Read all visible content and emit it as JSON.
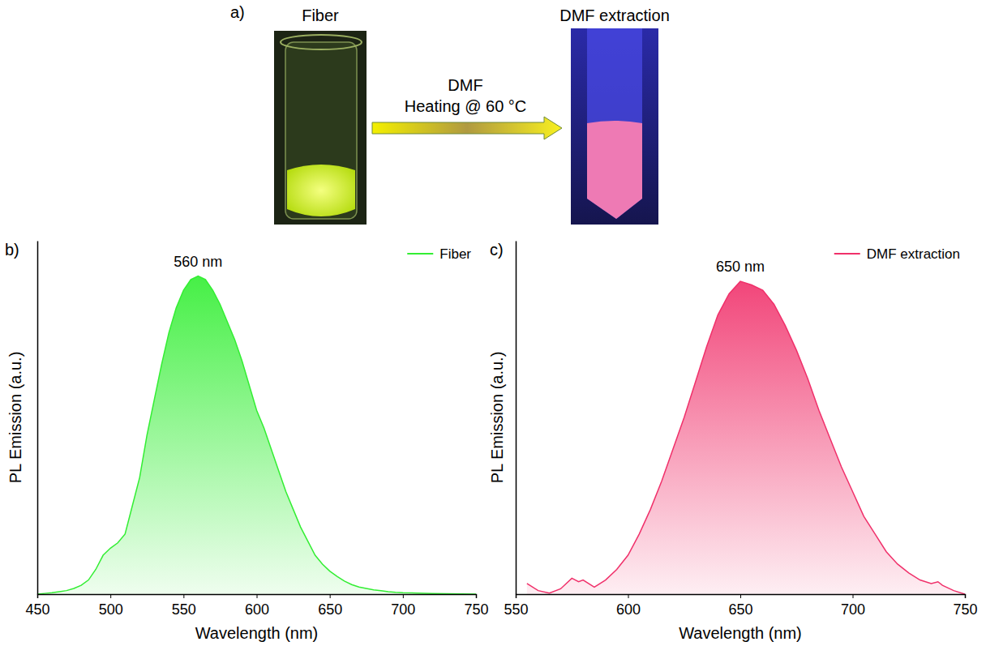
{
  "scheme": {
    "panel_label": "a)",
    "left_label": "Fiber",
    "right_label": "DMF extraction",
    "arrow_text": [
      "DMF",
      "Heating @ 60 °C"
    ]
  },
  "chart_data": [
    {
      "type": "area",
      "panel_label": "b)",
      "x_label": "Wavelength (nm)",
      "y_label": "PL Emission (a.u.)",
      "annotations": [
        {
          "text": "560 nm"
        }
      ],
      "xlim": [
        450,
        750
      ],
      "xticks": [
        450,
        500,
        550,
        600,
        650,
        700,
        750
      ],
      "ylim": [
        0,
        1
      ],
      "tick_labels": "x",
      "grid": false,
      "legend": "upper right",
      "series": [
        {
          "name": "Fiber",
          "color": "#33ee33",
          "x": [
            450,
            455,
            460,
            465,
            470,
            475,
            480,
            485,
            490,
            495,
            500,
            505,
            510,
            515,
            520,
            525,
            530,
            535,
            540,
            545,
            550,
            555,
            560,
            565,
            570,
            575,
            580,
            585,
            590,
            595,
            600,
            605,
            610,
            615,
            620,
            625,
            630,
            635,
            640,
            645,
            650,
            655,
            660,
            665,
            670,
            675,
            680,
            685,
            690,
            695,
            700,
            710,
            720,
            730,
            740,
            750
          ],
          "values": [
            0.0,
            0.002,
            0.004,
            0.007,
            0.01,
            0.016,
            0.025,
            0.04,
            0.07,
            0.11,
            0.13,
            0.145,
            0.17,
            0.25,
            0.33,
            0.45,
            0.55,
            0.65,
            0.74,
            0.81,
            0.86,
            0.89,
            0.9,
            0.89,
            0.86,
            0.82,
            0.77,
            0.72,
            0.66,
            0.59,
            0.52,
            0.47,
            0.41,
            0.35,
            0.29,
            0.24,
            0.19,
            0.15,
            0.11,
            0.085,
            0.065,
            0.05,
            0.037,
            0.027,
            0.02,
            0.016,
            0.012,
            0.01,
            0.007,
            0.005,
            0.004,
            0.003,
            0.002,
            0.001,
            0.0005,
            0.0
          ]
        }
      ]
    },
    {
      "type": "area",
      "panel_label": "c)",
      "x_label": "Wavelength (nm)",
      "y_label": "PL Emission (a.u.)",
      "annotations": [
        {
          "text": "650 nm"
        }
      ],
      "xlim": [
        550,
        750
      ],
      "xticks": [
        550,
        600,
        650,
        700,
        750
      ],
      "ylim": [
        0,
        1
      ],
      "tick_labels": "x",
      "grid": false,
      "legend": "upper right",
      "series": [
        {
          "name": "DMF extraction",
          "color": "#f0306a",
          "x": [
            555,
            560,
            565,
            570,
            575,
            578,
            580,
            585,
            590,
            595,
            600,
            605,
            610,
            615,
            620,
            625,
            630,
            635,
            640,
            645,
            650,
            655,
            660,
            665,
            670,
            675,
            680,
            685,
            690,
            695,
            700,
            705,
            710,
            715,
            720,
            725,
            730,
            735,
            738,
            740,
            745,
            750
          ],
          "values": [
            0.03,
            0.01,
            0.003,
            0.015,
            0.045,
            0.035,
            0.04,
            0.02,
            0.04,
            0.07,
            0.11,
            0.17,
            0.24,
            0.32,
            0.41,
            0.5,
            0.6,
            0.7,
            0.79,
            0.85,
            0.885,
            0.875,
            0.86,
            0.82,
            0.76,
            0.69,
            0.61,
            0.52,
            0.44,
            0.36,
            0.29,
            0.22,
            0.17,
            0.12,
            0.085,
            0.06,
            0.04,
            0.03,
            0.035,
            0.025,
            0.01,
            0.0
          ]
        }
      ]
    }
  ]
}
